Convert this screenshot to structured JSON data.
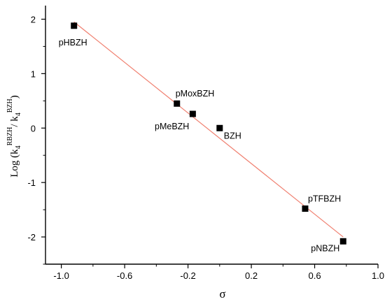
{
  "chart_data": {
    "type": "scatter",
    "title": "",
    "xlabel": "σ",
    "ylabel": {
      "prefix": "Log (k",
      "sub1": "4",
      "sup1": "RBZH",
      "mid": "/ k",
      "sub2": "4",
      "sup2": "BZH",
      "suffix": ")"
    },
    "xlim": [
      -1.1,
      1.0
    ],
    "ylim": [
      -2.5,
      2.25
    ],
    "xticks": [
      -1.0,
      -0.6,
      -0.2,
      0.2,
      0.6,
      1.0
    ],
    "xtick_labels": [
      "-1.0",
      "-0.6",
      "-0.2",
      "0.2",
      "0.6",
      "1.0"
    ],
    "yticks": [
      2,
      1,
      0,
      -1,
      -2
    ],
    "ytick_labels": [
      "2",
      "1",
      "0",
      "-1",
      "-2"
    ],
    "grid": false,
    "points": [
      {
        "label": "pHBZH",
        "x": -0.92,
        "y": 1.88
      },
      {
        "label": "pMoxBZH",
        "x": -0.27,
        "y": 0.45
      },
      {
        "label": "pMeBZH",
        "x": -0.17,
        "y": 0.26
      },
      {
        "label": "BZH",
        "x": 0.0,
        "y": 0.0
      },
      {
        "label": "pTFBZH",
        "x": 0.54,
        "y": -1.48
      },
      {
        "label": "pNBZH",
        "x": 0.78,
        "y": -2.08
      }
    ],
    "fit_line": {
      "x": [
        -0.92,
        0.78
      ],
      "y": [
        1.95,
        -2.0
      ]
    },
    "colors": {
      "points": "#000000",
      "fit_line": "#f08070",
      "axes": "#000000"
    }
  }
}
